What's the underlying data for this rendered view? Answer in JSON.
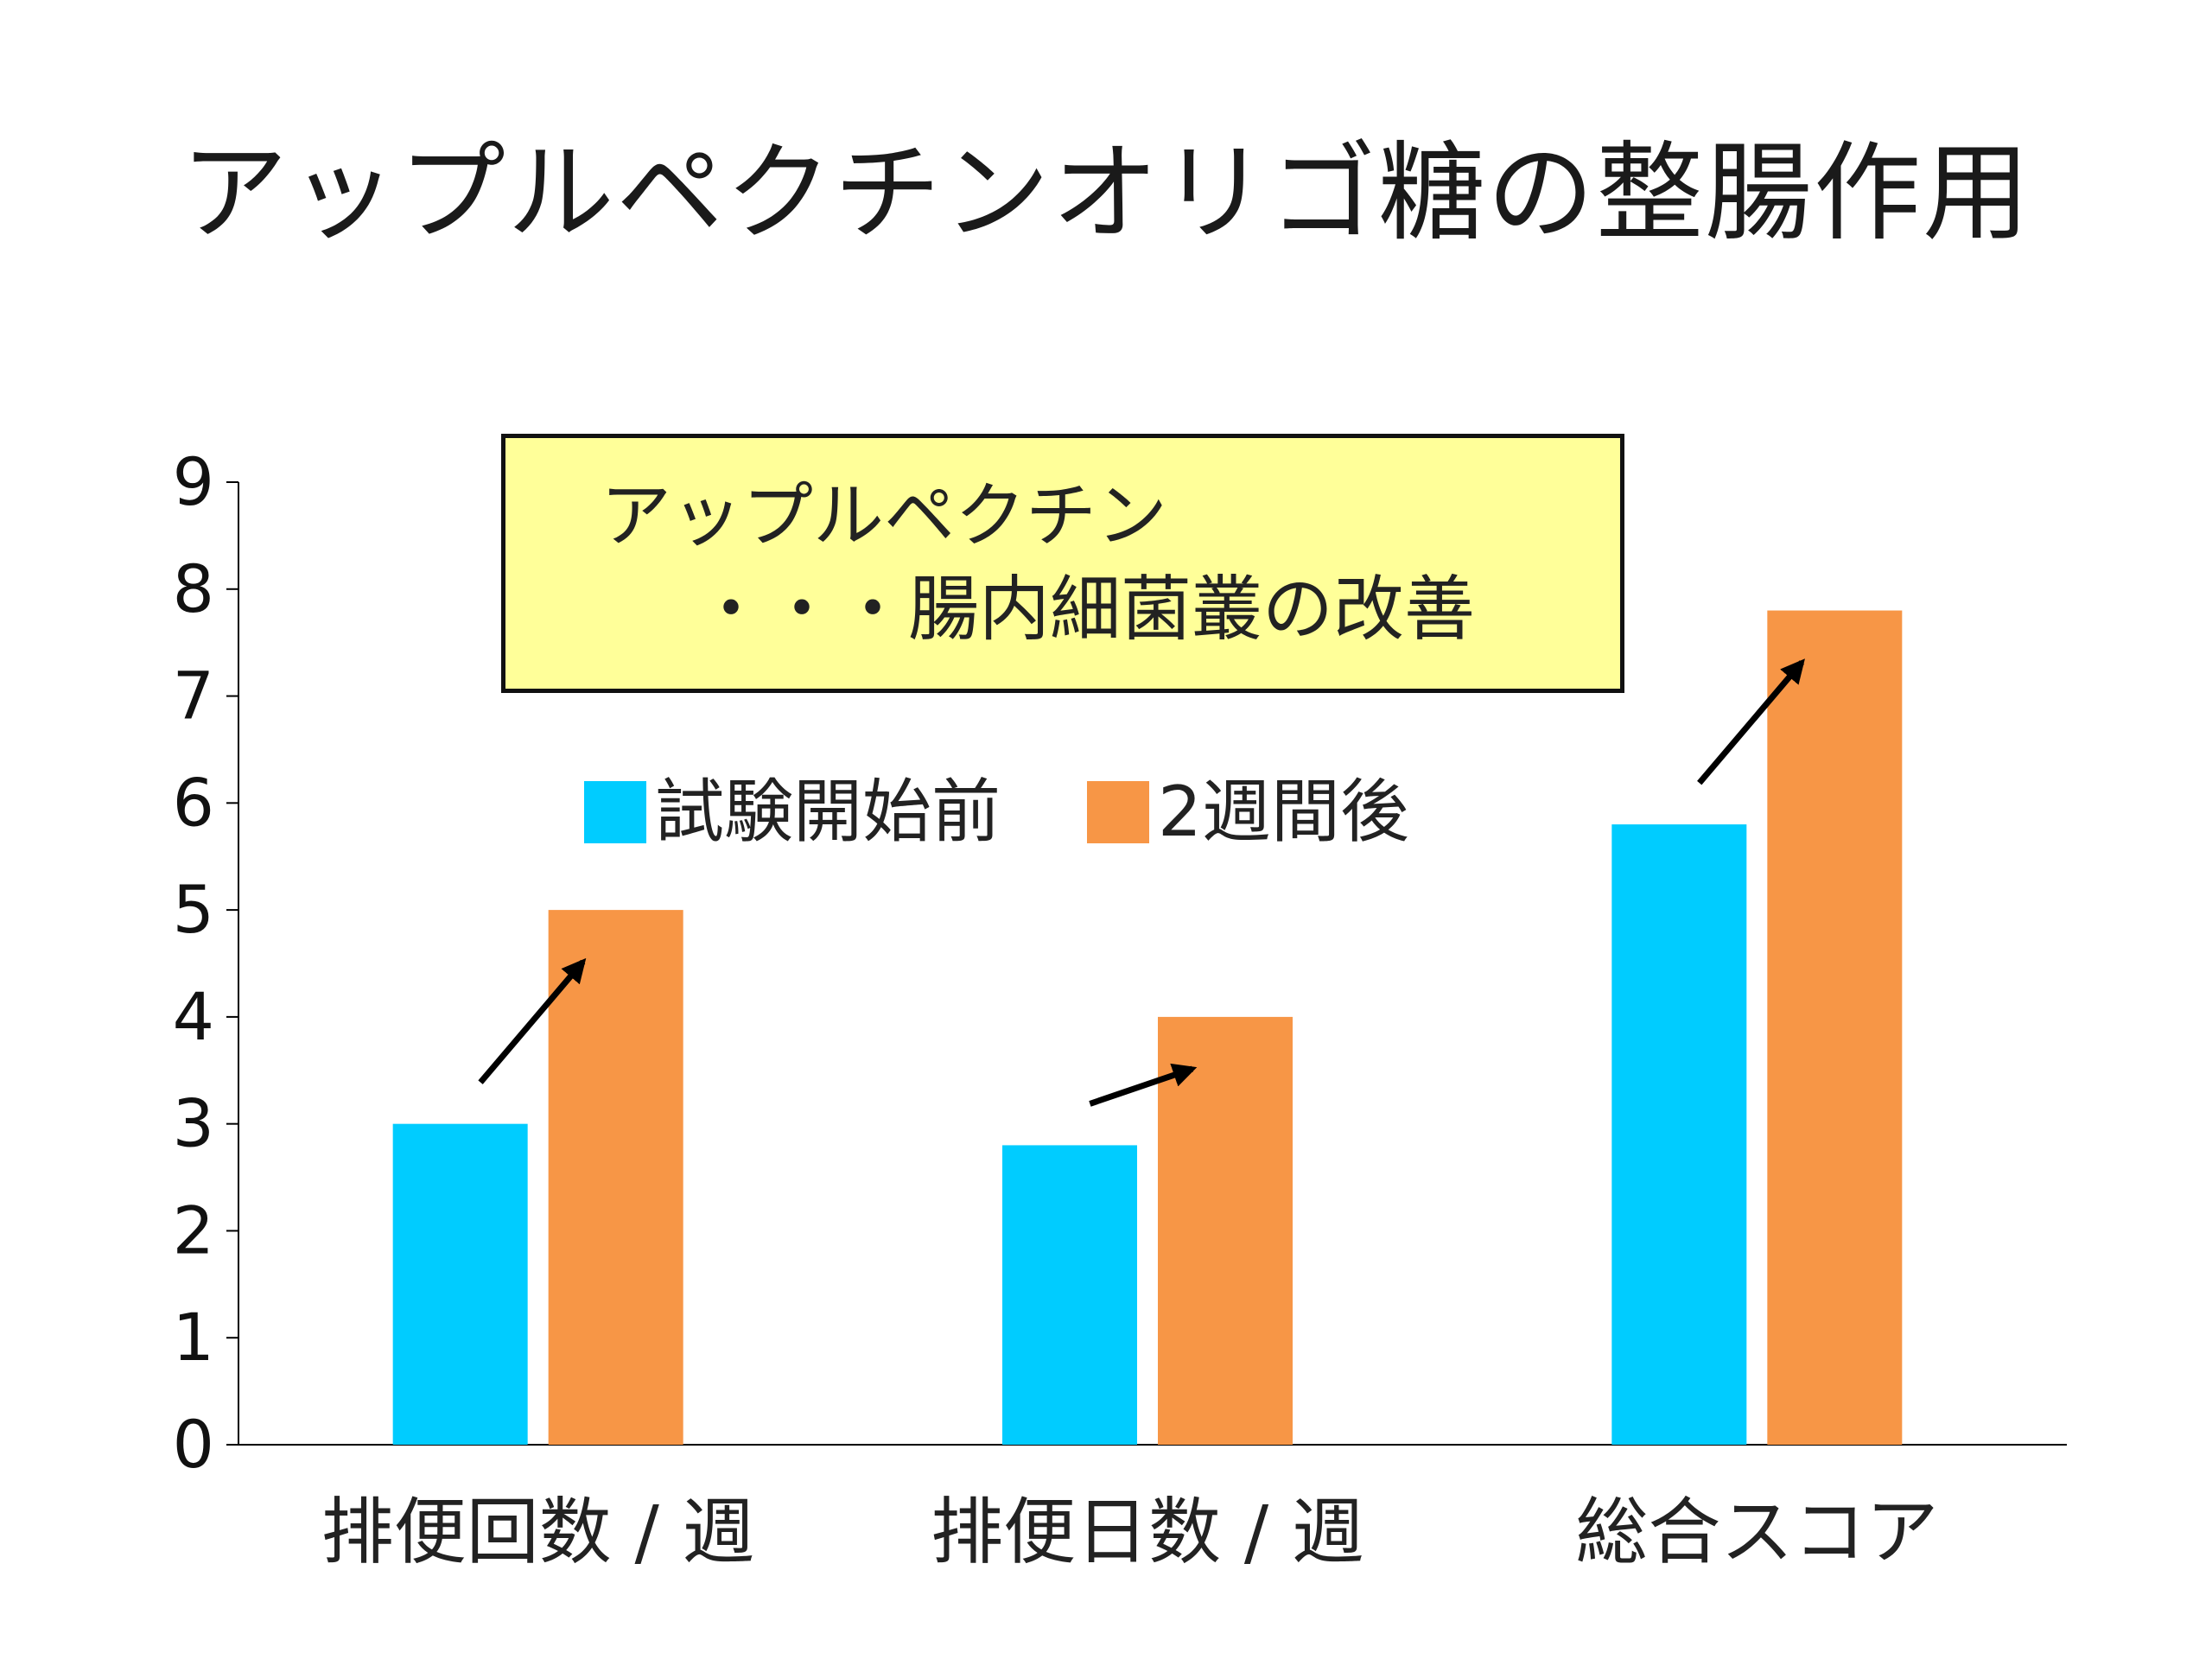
{
  "slide": {
    "title": "アップルペクチンオリゴ糖の整腸作用"
  },
  "note": {
    "line1": "アップルペクチン",
    "line2": "・・・腸内細菌叢の改善"
  },
  "chart_data": {
    "type": "bar",
    "categories": [
      "排便回数 / 週",
      "排便日数 / 週",
      "総合スコア"
    ],
    "series": [
      {
        "name": "試験開始前",
        "color": "#00ccff",
        "values": [
          3,
          2.8,
          5.8
        ]
      },
      {
        "name": "2週間後",
        "color": "#f79646",
        "values": [
          5,
          4,
          7.8
        ]
      }
    ],
    "ylim": [
      0,
      9
    ],
    "yticks": [
      "0",
      "1",
      "2",
      "3",
      "4",
      "5",
      "6",
      "7",
      "8",
      "9"
    ],
    "grid": false,
    "legend_position": "top-left",
    "annotations": "arrows from each 試験開始前 bar toward the 2週間後 bar"
  }
}
